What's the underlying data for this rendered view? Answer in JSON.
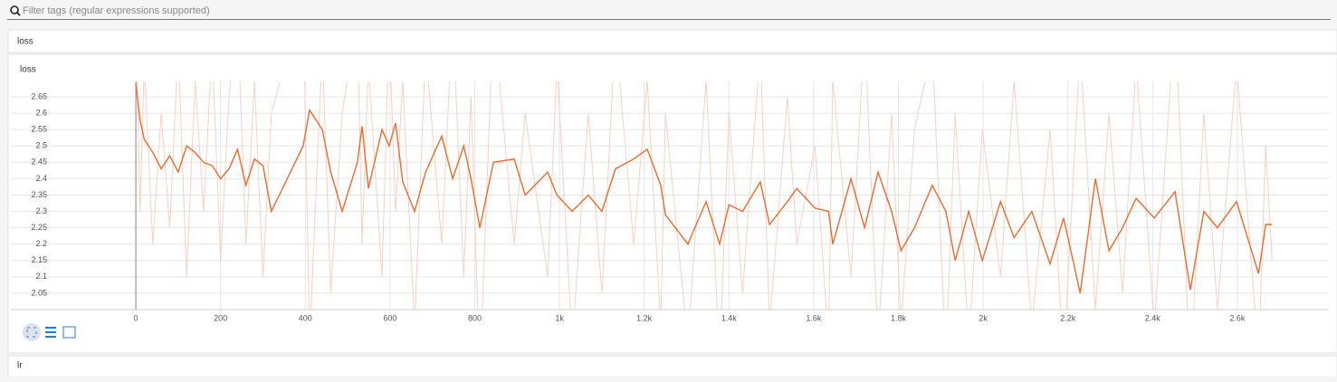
{
  "filter_placeholder": "Filter tags (regular expressions supported)",
  "sections": [
    {
      "title": "loss"
    },
    {
      "title": "lr"
    }
  ],
  "chart_data": {
    "type": "line",
    "title": "loss",
    "x": [
      0,
      10,
      20,
      40,
      60,
      80,
      100,
      120,
      140,
      160,
      180,
      200,
      220,
      240,
      260,
      280,
      300,
      320,
      395,
      410,
      440,
      460,
      487,
      523,
      534,
      549,
      581,
      598,
      613,
      630,
      658,
      684,
      722,
      748,
      774,
      791,
      812,
      844,
      893,
      919,
      972,
      994,
      1030,
      1068,
      1100,
      1132,
      1175,
      1207,
      1239,
      1250,
      1303,
      1346,
      1378,
      1400,
      1432,
      1474,
      1496,
      1538,
      1560,
      1603,
      1635,
      1645,
      1688,
      1720,
      1752,
      1784,
      1806,
      1838,
      1880,
      1912,
      1934,
      1966,
      1998,
      2041,
      2073,
      2115,
      2158,
      2190,
      2229,
      2265,
      2297,
      2329,
      2361,
      2404,
      2453,
      2489,
      2521,
      2553,
      2598,
      2650,
      2667,
      2682
    ],
    "series": [
      {
        "color": "#fbd0bf",
        "values": [
          2.9,
          2.3,
          2.75,
          2.2,
          2.6,
          2.25,
          2.8,
          2.1,
          2.7,
          2.3,
          2.8,
          2.15,
          2.65,
          2.9,
          2.2,
          2.7,
          2.1,
          2.6,
          2.95,
          1.9,
          2.8,
          2.05,
          2.6,
          2.9,
          2.2,
          2.75,
          2.1,
          2.85,
          2.3,
          2.7,
          1.95,
          2.8,
          2.2,
          2.9,
          2.1,
          2.65,
          1.8,
          2.9,
          2.2,
          2.6,
          2.1,
          2.75,
          1.9,
          2.6,
          2.05,
          2.85,
          2.2,
          2.7,
          1.95,
          2.6,
          1.9,
          2.7,
          1.85,
          2.6,
          2.05,
          2.8,
          1.95,
          2.65,
          2.2,
          2.5,
          1.9,
          2.7,
          2.1,
          2.85,
          1.9,
          2.6,
          1.95,
          2.55,
          2.8,
          1.85,
          2.6,
          1.9,
          2.55,
          2.1,
          2.7,
          1.95,
          2.55,
          1.85,
          2.8,
          2.0,
          2.6,
          2.05,
          2.75,
          1.95,
          2.9,
          1.8,
          2.6,
          2.0,
          2.75,
          1.85,
          2.5,
          2.15
        ]
      },
      {
        "color": "#f4692d",
        "values": [
          2.69,
          2.58,
          2.52,
          2.48,
          2.43,
          2.47,
          2.42,
          2.5,
          2.48,
          2.45,
          2.44,
          2.4,
          2.43,
          2.49,
          2.38,
          2.46,
          2.44,
          2.3,
          2.5,
          2.61,
          2.55,
          2.42,
          2.3,
          2.45,
          2.56,
          2.37,
          2.55,
          2.5,
          2.57,
          2.39,
          2.3,
          2.42,
          2.53,
          2.4,
          2.5,
          2.4,
          2.25,
          2.45,
          2.46,
          2.35,
          2.42,
          2.35,
          2.3,
          2.35,
          2.3,
          2.43,
          2.46,
          2.49,
          2.38,
          2.29,
          2.2,
          2.33,
          2.2,
          2.32,
          2.3,
          2.39,
          2.26,
          2.33,
          2.37,
          2.31,
          2.3,
          2.2,
          2.4,
          2.25,
          2.42,
          2.3,
          2.18,
          2.25,
          2.38,
          2.3,
          2.15,
          2.3,
          2.15,
          2.33,
          2.22,
          2.3,
          2.14,
          2.28,
          2.05,
          2.4,
          2.18,
          2.25,
          2.34,
          2.28,
          2.36,
          2.06,
          2.3,
          2.25,
          2.33,
          2.11,
          2.26,
          2.26
        ]
      }
    ],
    "xlim": [
      -295,
      2816
    ],
    "ylim": [
      2.0,
      2.697
    ],
    "xticks": [
      0,
      200,
      400,
      600,
      800,
      {
        "value": 1000,
        "label": "1k"
      },
      {
        "value": 1200,
        "label": "1.2k"
      },
      {
        "value": 1400,
        "label": "1.4k"
      },
      {
        "value": 1600,
        "label": "1.6k"
      },
      {
        "value": 1800,
        "label": "1.8k"
      },
      {
        "value": 2000,
        "label": "2k"
      },
      {
        "value": 2200,
        "label": "2.2k"
      },
      {
        "value": 2400,
        "label": "2.4k"
      },
      {
        "value": 2600,
        "label": "2.6k"
      }
    ],
    "yticks": [
      2.05,
      2.1,
      2.15,
      2.2,
      2.25,
      2.3,
      2.35,
      2.4,
      2.45,
      2.5,
      2.55,
      2.6,
      2.65
    ],
    "grid": true
  }
}
